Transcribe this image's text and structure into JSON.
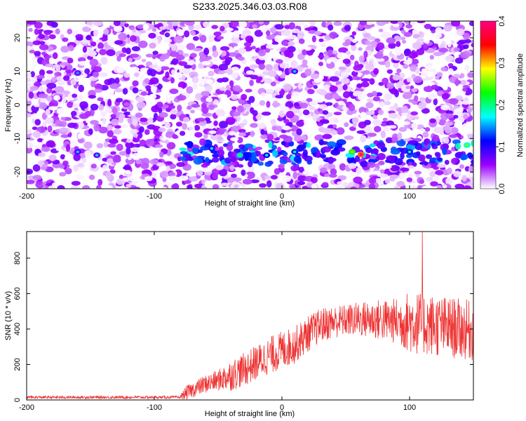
{
  "title": "S233.2025.346.03.03.R08",
  "chart_data": [
    {
      "type": "heatmap",
      "xlabel": "Height of straight line (km)",
      "ylabel": "Frequency (Hz)",
      "xlim": [
        -200,
        150
      ],
      "ylim": [
        -25,
        25
      ],
      "xticks": [
        "-200",
        "-100",
        "0",
        "100"
      ],
      "xtick_values": [
        -200,
        -100,
        0,
        100
      ],
      "yticks": [
        "20",
        "10",
        "0",
        "-10",
        "-20"
      ],
      "ytick_values": [
        20,
        10,
        0,
        -10,
        -20
      ],
      "colorbar": {
        "label": "Normalized spectral amplitude",
        "range": [
          0,
          0.4
        ],
        "ticks": [
          "0.4",
          "0.3",
          "0.2",
          "0.1",
          "0.0"
        ],
        "tick_values": [
          0.4,
          0.3,
          0.2,
          0.1,
          0.0
        ],
        "colors": [
          "#ffffff",
          "#9b00ff",
          "#0000ff",
          "#00ffff",
          "#00ff00",
          "#ffff00",
          "#ff0000",
          "#ff0080"
        ]
      },
      "features": [
        {
          "description": "background noise amplitude",
          "value_range": [
            0.0,
            0.06
          ]
        },
        {
          "description": "signal band",
          "x_range": [
            -80,
            150
          ],
          "frequency_range": [
            -18,
            -11
          ],
          "peak_amplitude": 0.32,
          "peak_x": 62
        }
      ]
    },
    {
      "type": "line",
      "xlabel": "Height of straight line (km)",
      "ylabel": "SNR (10 * v/v)",
      "xlim": [
        -200,
        150
      ],
      "ylim": [
        0,
        950
      ],
      "xticks": [
        "-200",
        "-100",
        "0",
        "100"
      ],
      "xtick_values": [
        -200,
        -100,
        0,
        100
      ],
      "yticks": [
        "0",
        "200",
        "400",
        "600",
        "800"
      ],
      "ytick_values": [
        0,
        200,
        400,
        600,
        800
      ],
      "color": "#ee3333",
      "trend": {
        "x": [
          -200,
          -80,
          -75,
          -60,
          -50,
          -40,
          -30,
          -20,
          -10,
          0,
          10,
          20,
          30,
          40,
          50,
          60,
          70,
          80,
          90,
          100,
          110,
          120,
          130,
          140,
          150
        ],
        "y": [
          15,
          15,
          40,
          90,
          110,
          140,
          170,
          210,
          250,
          280,
          310,
          370,
          420,
          440,
          450,
          455,
          455,
          450,
          445,
          440,
          430,
          420,
          410,
          400,
          390
        ]
      },
      "noise_amplitude": {
        "x": [
          -200,
          -80,
          -75,
          -50,
          -40,
          0,
          50,
          90,
          100,
          150
        ],
        "y": [
          8,
          8,
          40,
          60,
          90,
          110,
          90,
          130,
          180,
          170
        ]
      },
      "peak": {
        "x": 110,
        "y": 950
      }
    }
  ]
}
